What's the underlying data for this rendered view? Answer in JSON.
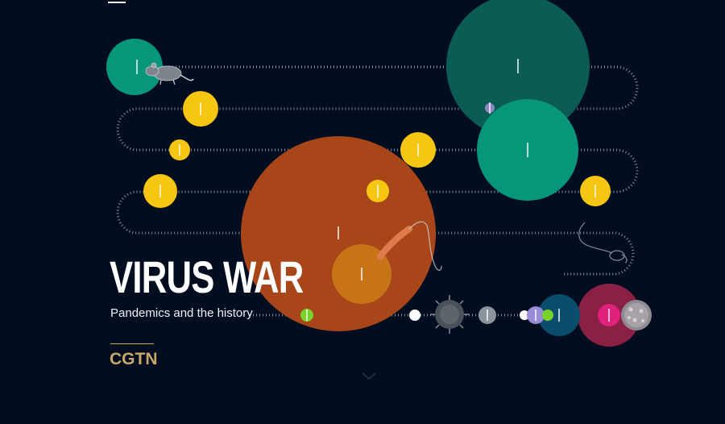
{
  "hero": {
    "title": "VIRUS WAR",
    "subtitle": "Pandemics and the history"
  },
  "brand": {
    "name": "CGTN",
    "color": "#c9a969"
  },
  "nav": {
    "menu_icon": "hamburger-menu-icon",
    "scroll_hint_icon": "chevron-down-icon"
  },
  "illustrations": [
    "rat-icon",
    "bacterium-icon",
    "flagellate-microbe-icon",
    "coronavirus-icon",
    "virus-particle-icon"
  ],
  "colors": {
    "background": "#020e20",
    "yellow": "#f7c612",
    "teal": "#07967a",
    "dark_teal": "#0b5c55",
    "orange": "#a8461a",
    "amber": "#c77318",
    "crimson": "#8a2044",
    "magenta": "#e0207a",
    "navy": "#0b4d6c",
    "lime": "#7ad12a",
    "lavender": "#9a8bd6",
    "gray": "#8b939c",
    "track": "#9aa6b4"
  }
}
